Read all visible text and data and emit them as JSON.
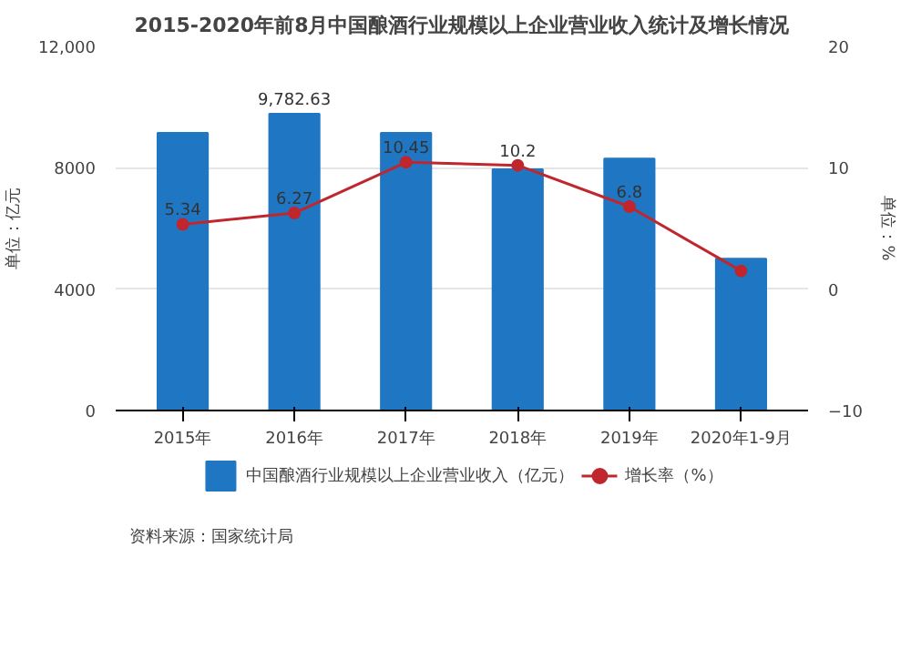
{
  "chart_data": {
    "type": "bar",
    "title": "2015-2020年前8月中国酿酒行业规模以上企业营业收入统计及增长情况",
    "categories": [
      "2015年",
      "2016年",
      "2017年",
      "2018年",
      "2019年",
      "2020年1-9月"
    ],
    "series": [
      {
        "name": "中国酿酒行业规模以上企业营业收入（亿元）",
        "color": "#1f77c4",
        "values": [
          9150,
          9782.63,
          9150,
          7950,
          8300,
          5000
        ],
        "value_labels": [
          null,
          "9,782.63",
          null,
          null,
          null,
          null
        ]
      },
      {
        "name": "增长率（%）",
        "type": "line",
        "axis": "y2",
        "color": "#c0262d",
        "values": [
          5.34,
          6.27,
          10.45,
          10.2,
          6.8,
          1.5
        ],
        "value_labels": [
          "5.34",
          "6.27",
          "10.45",
          "10.2",
          "6.8",
          null
        ]
      }
    ],
    "ylabel": "单位：亿元",
    "y2label": "单位：%",
    "ylim": [
      0,
      12000
    ],
    "yticks": [
      0,
      4000,
      8000,
      {
        "value": 12000,
        "label": "12,000"
      }
    ],
    "y2lim": [
      -10,
      20
    ],
    "y2ticks": [
      -10,
      0,
      10,
      20
    ],
    "grid": "y",
    "legend": "bottom",
    "marker": "circle",
    "line_style": "solid",
    "annotations": [
      "资料来源：国家统计局"
    ]
  }
}
